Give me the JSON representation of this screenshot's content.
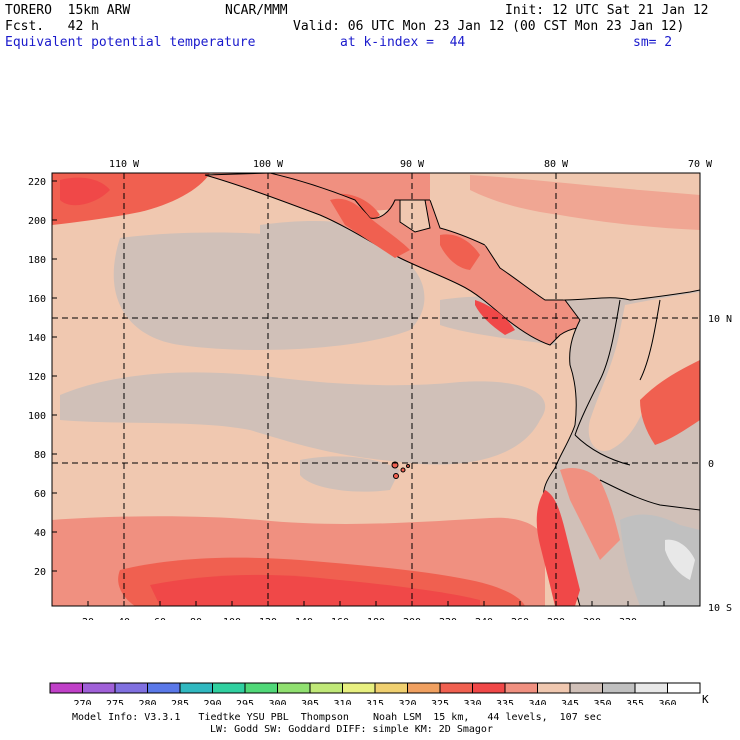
{
  "header": {
    "model": "TORERO  15km ARW",
    "center": "NCAR/MMM",
    "init": "Init: 12 UTC Sat 21 Jan 12",
    "fcst": "Fcst.   42 h",
    "valid": "Valid: 06 UTC Mon 23 Jan 12 (00 CST Mon 23 Jan 12)",
    "field": "Equivalent potential temperature",
    "level": "at k-index =  44",
    "smooth": "sm= 2"
  },
  "map": {
    "lon_labels": [
      "110 W",
      "100 W",
      "90 W",
      "80 W",
      "70 W"
    ],
    "lat_labels": [
      "10 N",
      "0",
      "10 S"
    ],
    "x_ticks": [
      "20",
      "40",
      "60",
      "80",
      "100",
      "120",
      "140",
      "160",
      "180",
      "200",
      "220",
      "240",
      "260",
      "280",
      "300",
      "320"
    ],
    "y_ticks": [
      "20",
      "40",
      "60",
      "80",
      "100",
      "120",
      "140",
      "160",
      "180",
      "200",
      "220"
    ]
  },
  "colorbar": {
    "unit": "K",
    "labels": [
      "270",
      "275",
      "280",
      "285",
      "290",
      "295",
      "300",
      "305",
      "310",
      "315",
      "320",
      "325",
      "330",
      "335",
      "340",
      "345",
      "350",
      "355",
      "360"
    ],
    "colors": [
      "#c040c8",
      "#a060d8",
      "#8070e0",
      "#5a78e8",
      "#30b8c0",
      "#30d0a0",
      "#50d878",
      "#90e070",
      "#c0e878",
      "#e8f080",
      "#f0d070",
      "#f0a060",
      "#f06050",
      "#f04848",
      "#f09080",
      "#f0c8b0",
      "#d0c0b8",
      "#c0c0c0",
      "#e8e8e8",
      "#ffffff"
    ]
  },
  "footer": {
    "line1": "Model Info: V3.3.1   Tiedtke YSU PBL  Thompson    Noah LSM  15 km,   44 levels,  107 sec",
    "line2": "LW: Godd SW: Goddard DIFF: simple KM: 2D Smagor"
  }
}
